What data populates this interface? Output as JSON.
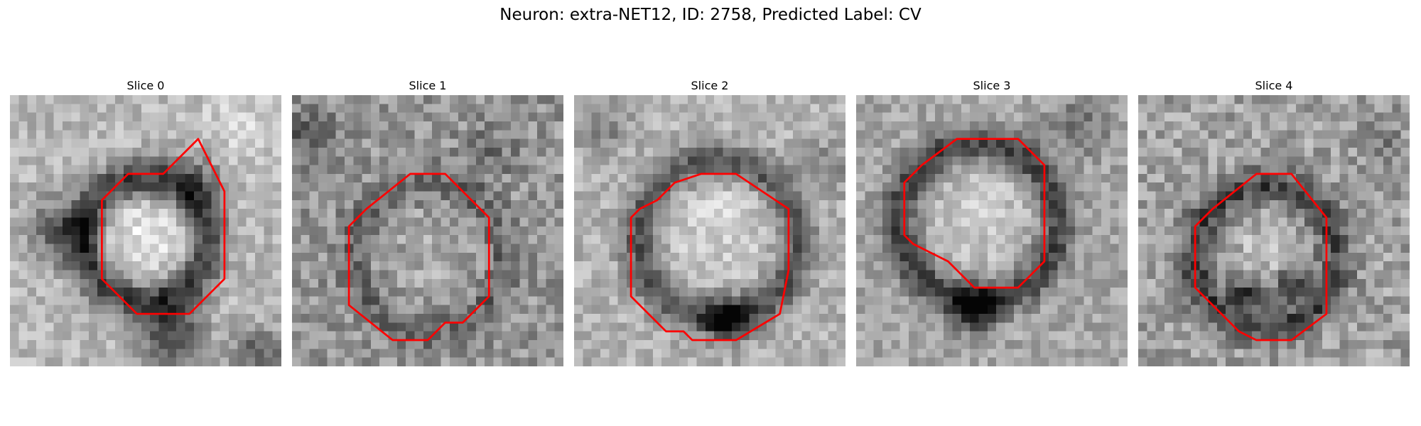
{
  "figure": {
    "title": "Neuron: extra-NET12, ID: 2758, Predicted Label: CV"
  },
  "panels": [
    {
      "title": "Slice 0",
      "kind": "slice0",
      "contour": [
        [
          21.5,
          5
        ],
        [
          17.5,
          9
        ],
        [
          13.5,
          9
        ],
        [
          12.5,
          10
        ],
        [
          11.5,
          11
        ],
        [
          10.5,
          12
        ],
        [
          10.5,
          16
        ],
        [
          10.5,
          21
        ],
        [
          14.5,
          25
        ],
        [
          20.5,
          25
        ],
        [
          24.5,
          21
        ],
        [
          24.5,
          11
        ]
      ]
    },
    {
      "title": "Slice 1",
      "kind": "slice1",
      "contour": [
        [
          17.5,
          9
        ],
        [
          13.5,
          9
        ],
        [
          8.5,
          13
        ],
        [
          7.5,
          14
        ],
        [
          6.5,
          15
        ],
        [
          6.5,
          19
        ],
        [
          6.5,
          24
        ],
        [
          11.5,
          28
        ],
        [
          15.5,
          28
        ],
        [
          17.5,
          26
        ],
        [
          19.5,
          26
        ],
        [
          21.5,
          24
        ],
        [
          22.5,
          23
        ],
        [
          22.5,
          14
        ]
      ]
    },
    {
      "title": "Slice 2",
      "kind": "slice2",
      "contour": [
        [
          18.5,
          9
        ],
        [
          14.5,
          9
        ],
        [
          11.5,
          10
        ],
        [
          10.5,
          11
        ],
        [
          9.5,
          12
        ],
        [
          7.5,
          13
        ],
        [
          6.5,
          14
        ],
        [
          6.5,
          18
        ],
        [
          6.5,
          23
        ],
        [
          10.5,
          27
        ],
        [
          12.5,
          27
        ],
        [
          13.5,
          28
        ],
        [
          18.5,
          28
        ],
        [
          23.5,
          25
        ],
        [
          24.5,
          20
        ],
        [
          24.5,
          13
        ]
      ]
    },
    {
      "title": "Slice 3",
      "kind": "slice3",
      "contour": [
        [
          18.5,
          5
        ],
        [
          11.5,
          5
        ],
        [
          7.5,
          8
        ],
        [
          6.5,
          9
        ],
        [
          5.5,
          10
        ],
        [
          5.5,
          15
        ],
        [
          5.5,
          16
        ],
        [
          6.5,
          17
        ],
        [
          8.5,
          18
        ],
        [
          10.5,
          19
        ],
        [
          13.5,
          22
        ],
        [
          18.5,
          22
        ],
        [
          21.5,
          19
        ],
        [
          21.5,
          8
        ]
      ]
    },
    {
      "title": "Slice 4",
      "kind": "slice4",
      "contour": [
        [
          17.5,
          9
        ],
        [
          13.5,
          9
        ],
        [
          8.5,
          13
        ],
        [
          7.5,
          14
        ],
        [
          6.5,
          15
        ],
        [
          6.5,
          18
        ],
        [
          6.5,
          22
        ],
        [
          9.5,
          25
        ],
        [
          11.5,
          27
        ],
        [
          13.5,
          28
        ],
        [
          17.5,
          28
        ],
        [
          21.5,
          25
        ],
        [
          21.5,
          14
        ]
      ]
    }
  ],
  "colors": {
    "contour": "#ff0000"
  }
}
